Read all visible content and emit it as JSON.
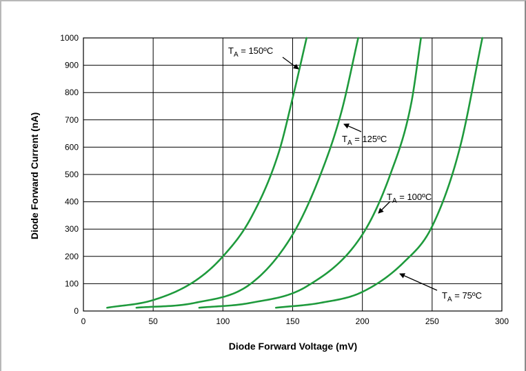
{
  "chart_data": {
    "type": "line",
    "title": "",
    "xlabel": "Diode Forward Voltage (mV)",
    "ylabel": "Diode Forward Current (nA)",
    "xlim": [
      0,
      300
    ],
    "ylim": [
      0,
      1000
    ],
    "xticks": [
      "0",
      "50",
      "100",
      "150",
      "200",
      "250",
      "300"
    ],
    "yticks": [
      "0",
      "100",
      "200",
      "300",
      "400",
      "500",
      "600",
      "700",
      "800",
      "900",
      "1000"
    ],
    "grid": true,
    "line_color": "#1e9a3c",
    "series": [
      {
        "name": "TA = 150ºC",
        "x": [
          17,
          50,
          80,
          100,
          120,
          140,
          150,
          160
        ],
        "y": [
          12,
          40,
          110,
          200,
          340,
          580,
          780,
          1000
        ]
      },
      {
        "name": "TA = 125ºC",
        "x": [
          38,
          80,
          120,
          150,
          170,
          185,
          197
        ],
        "y": [
          12,
          30,
          100,
          280,
          500,
          730,
          1000
        ]
      },
      {
        "name": "TA = 100ºC",
        "x": [
          83,
          120,
          160,
          200,
          220,
          235,
          242
        ],
        "y": [
          12,
          30,
          90,
          280,
          500,
          760,
          1000
        ]
      },
      {
        "name": "TA = 75ºC",
        "x": [
          138,
          170,
          200,
          230,
          250,
          270,
          286
        ],
        "y": [
          12,
          30,
          70,
          180,
          310,
          600,
          1000
        ]
      }
    ],
    "annotations": [
      {
        "main": "T",
        "sub": "A",
        "rest": " = 150ºC"
      },
      {
        "main": "T",
        "sub": "A",
        "rest": " = 125ºC"
      },
      {
        "main": "T",
        "sub": "A",
        "rest": " = 100ºC"
      },
      {
        "main": "T",
        "sub": "A",
        "rest": " = 75ºC"
      }
    ]
  }
}
